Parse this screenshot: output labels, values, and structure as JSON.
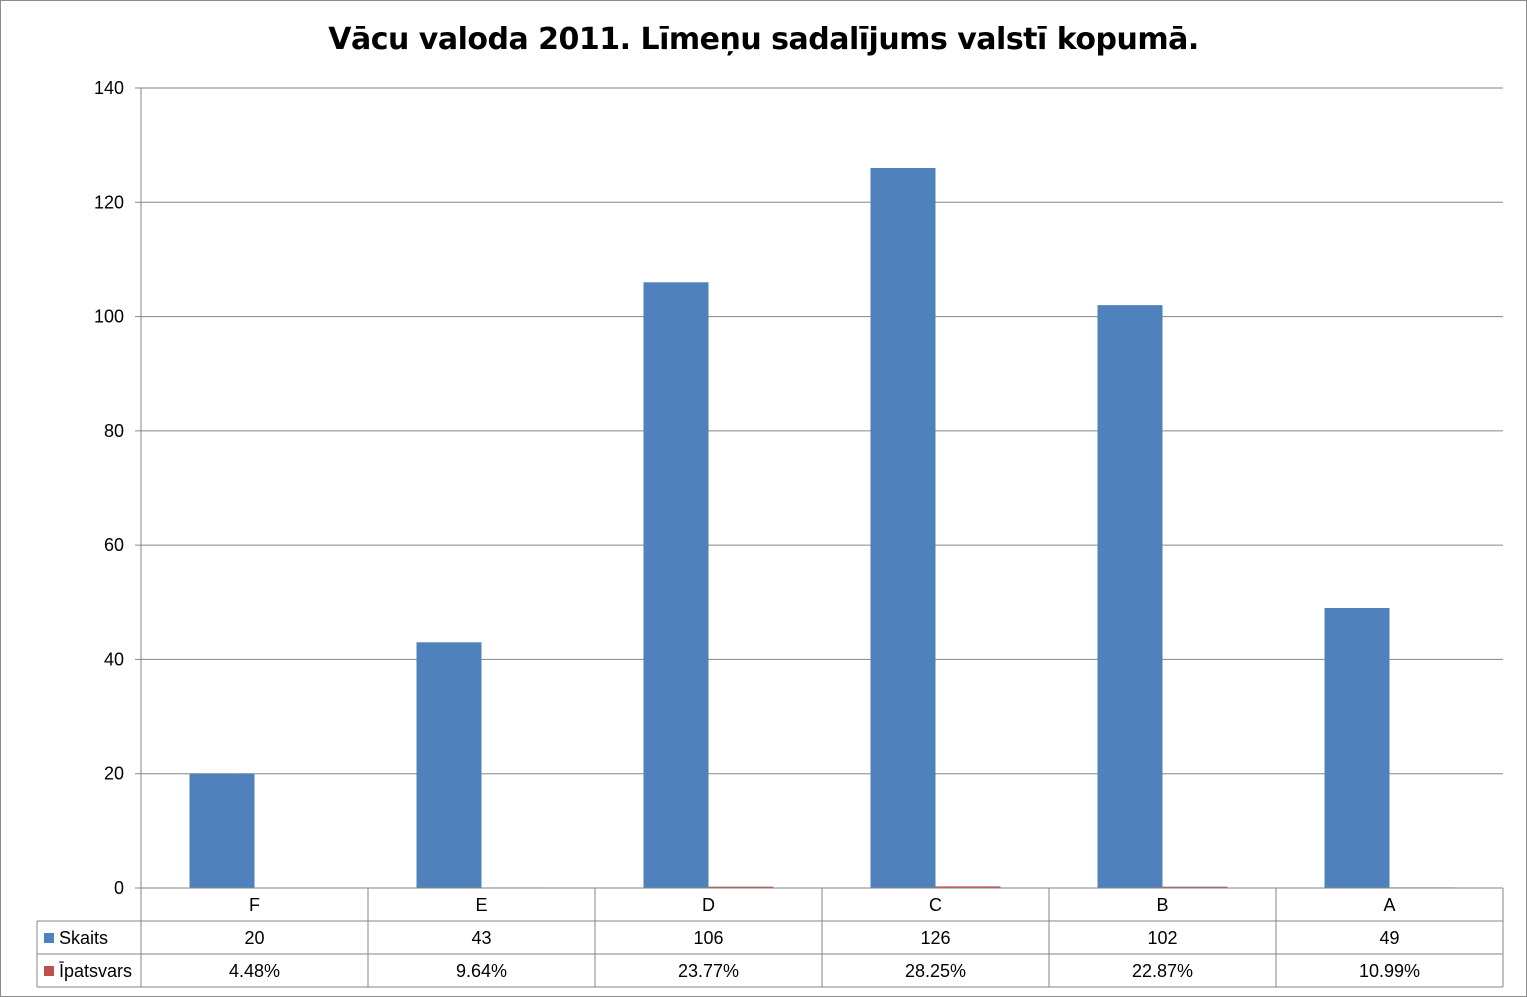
{
  "chart_data": {
    "type": "bar",
    "title": "Vācu valoda 2011. Līmeņu sadalījums valstī kopumā.",
    "categories": [
      "F",
      "E",
      "D",
      "C",
      "B",
      "A"
    ],
    "ylim": [
      0,
      140
    ],
    "yticks": [
      0,
      20,
      40,
      60,
      80,
      100,
      120,
      140
    ],
    "grid": true,
    "legend": "data-table",
    "series": [
      {
        "name": "Skaits",
        "color": "#4f81bd",
        "values": [
          20,
          43,
          106,
          126,
          102,
          49
        ],
        "labels": [
          "20",
          "43",
          "106",
          "126",
          "102",
          "49"
        ]
      },
      {
        "name": "Īpatsvars",
        "color": "#c0504d",
        "values": [
          0.0448,
          0.0964,
          0.2377,
          0.2825,
          0.2287,
          0.1099
        ],
        "labels": [
          "4.48%",
          "9.64%",
          "23.77%",
          "28.25%",
          "22.87%",
          "10.99%"
        ]
      }
    ]
  }
}
